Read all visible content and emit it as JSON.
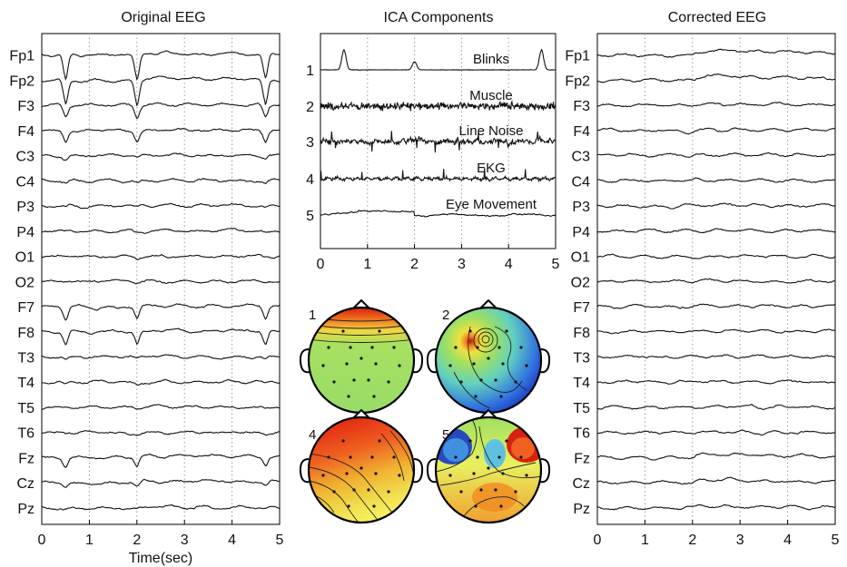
{
  "chart_data": [
    {
      "type": "line",
      "id": "original",
      "title": "Original EEG",
      "xlabel": "Time(sec)",
      "x_ticks": [
        0,
        1,
        2,
        3,
        4,
        5
      ],
      "xlim": [
        0,
        5
      ],
      "grid_x": [
        1,
        2,
        3,
        4
      ],
      "channels": [
        "Fp1",
        "Fp2",
        "F3",
        "F4",
        "C3",
        "C4",
        "P3",
        "P4",
        "O1",
        "O2",
        "F7",
        "F8",
        "T3",
        "T4",
        "T5",
        "T6",
        "Fz",
        "Cz",
        "Pz"
      ],
      "blink_times": [
        0.5,
        2.0,
        4.7
      ],
      "blink_gain": [
        1.0,
        1.0,
        0.45,
        0.4,
        0.12,
        0.1,
        0.05,
        0.05,
        0.03,
        0.03,
        0.45,
        0.5,
        0.1,
        0.08,
        0.05,
        0.05,
        0.35,
        0.15,
        0.06
      ],
      "step_gain": [
        0.2,
        0.25,
        0.1,
        0.1,
        0.05,
        0.05,
        0.05,
        0.05,
        0.03,
        0.03,
        0.12,
        0.12,
        0.05,
        0.05,
        0.05,
        0.05,
        0.25,
        0.2,
        0.1
      ]
    },
    {
      "type": "line",
      "id": "ica",
      "title": "ICA Components",
      "x_ticks": [
        0,
        1,
        2,
        3,
        4,
        5
      ],
      "xlim": [
        0,
        5
      ],
      "grid_x": [
        1,
        2,
        3,
        4
      ],
      "components": [
        {
          "index": "1",
          "label": "Blinks",
          "kind": "blink"
        },
        {
          "index": "2",
          "label": "Muscle",
          "kind": "muscle"
        },
        {
          "index": "3",
          "label": "Line Noise",
          "kind": "noise"
        },
        {
          "index": "4",
          "label": "EKG",
          "kind": "ekg"
        },
        {
          "index": "5",
          "label": "Eye Movement",
          "kind": "eye"
        }
      ]
    },
    {
      "type": "line",
      "id": "corrected",
      "title": "Corrected EEG",
      "x_ticks": [
        0,
        1,
        2,
        3,
        4,
        5
      ],
      "xlim": [
        0,
        5
      ],
      "grid_x": [
        1,
        2,
        3,
        4
      ],
      "channels": [
        "Fp1",
        "Fp2",
        "F3",
        "F4",
        "C3",
        "C4",
        "P3",
        "P4",
        "O1",
        "O2",
        "F7",
        "F8",
        "T3",
        "T4",
        "T5",
        "T6",
        "Fz",
        "Cz",
        "Pz"
      ],
      "step_gain": [
        0.55,
        0.5,
        0.15,
        0.12,
        0.08,
        0.08,
        0.06,
        0.06,
        0.04,
        0.04,
        0.1,
        0.1,
        0.05,
        0.05,
        0.05,
        0.05,
        0.4,
        0.35,
        0.2
      ]
    },
    {
      "type": "heatmap",
      "id": "scalp-maps",
      "maps": [
        {
          "label": "1",
          "pattern": "frontal-band"
        },
        {
          "label": "2",
          "pattern": "focal-left-frontal"
        },
        {
          "label": "4",
          "pattern": "broad-gradient"
        },
        {
          "label": "5",
          "pattern": "bifrontal-dipole"
        }
      ]
    }
  ],
  "colors": {
    "trace": "#111111",
    "grid": "#9a9a9a",
    "axis": "#000000",
    "map_low": "#2040c0",
    "map_mid": "#a8e060",
    "map_high": "#e02010"
  }
}
